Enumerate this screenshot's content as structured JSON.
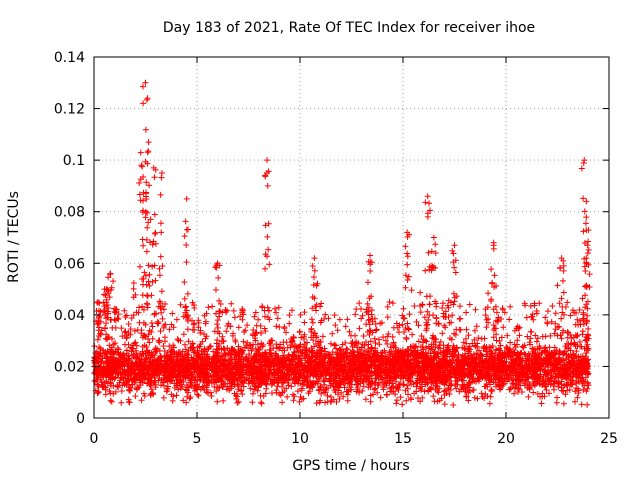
{
  "chart_data": {
    "type": "scatter",
    "title": "Day 183 of 2021, Rate Of TEC Index for receiver ihoe",
    "xlabel": "GPS time / hours",
    "ylabel": "ROTI / TECUs",
    "xlim": [
      0,
      25
    ],
    "ylim": [
      0,
      0.14
    ],
    "x_ticks": [
      0,
      5,
      10,
      15,
      20,
      25
    ],
    "x_tick_labels": [
      "0",
      "5",
      "10",
      "15",
      "20",
      "25"
    ],
    "y_ticks": [
      0,
      0.02,
      0.04,
      0.06,
      0.08,
      0.1,
      0.12,
      0.14
    ],
    "y_tick_labels": [
      "0",
      "0.02",
      "0.04",
      "0.06",
      "0.08",
      "0.1",
      "0.12",
      "0.14"
    ],
    "grid": true,
    "marker": "plus",
    "color": "#ff0000",
    "series": [
      {
        "name": "ROTI",
        "x_range": [
          0,
          24
        ],
        "typical_band": [
          0.005,
          0.03
        ],
        "peaks": [
          {
            "x": 0.2,
            "y": 0.045
          },
          {
            "x": 0.6,
            "y": 0.05
          },
          {
            "x": 0.8,
            "y": 0.056
          },
          {
            "x": 2.3,
            "y": 0.098
          },
          {
            "x": 2.5,
            "y": 0.13
          },
          {
            "x": 2.6,
            "y": 0.124
          },
          {
            "x": 2.65,
            "y": 0.107
          },
          {
            "x": 2.9,
            "y": 0.097
          },
          {
            "x": 3.3,
            "y": 0.095
          },
          {
            "x": 4.5,
            "y": 0.085
          },
          {
            "x": 6.0,
            "y": 0.06
          },
          {
            "x": 8.4,
            "y": 0.1
          },
          {
            "x": 10.7,
            "y": 0.062
          },
          {
            "x": 13.4,
            "y": 0.063
          },
          {
            "x": 15.2,
            "y": 0.072
          },
          {
            "x": 16.2,
            "y": 0.086
          },
          {
            "x": 16.5,
            "y": 0.07
          },
          {
            "x": 17.5,
            "y": 0.067
          },
          {
            "x": 19.4,
            "y": 0.068
          },
          {
            "x": 22.7,
            "y": 0.062
          },
          {
            "x": 23.8,
            "y": 0.1
          },
          {
            "x": 23.9,
            "y": 0.084
          },
          {
            "x": 23.95,
            "y": 0.067
          }
        ]
      }
    ]
  }
}
